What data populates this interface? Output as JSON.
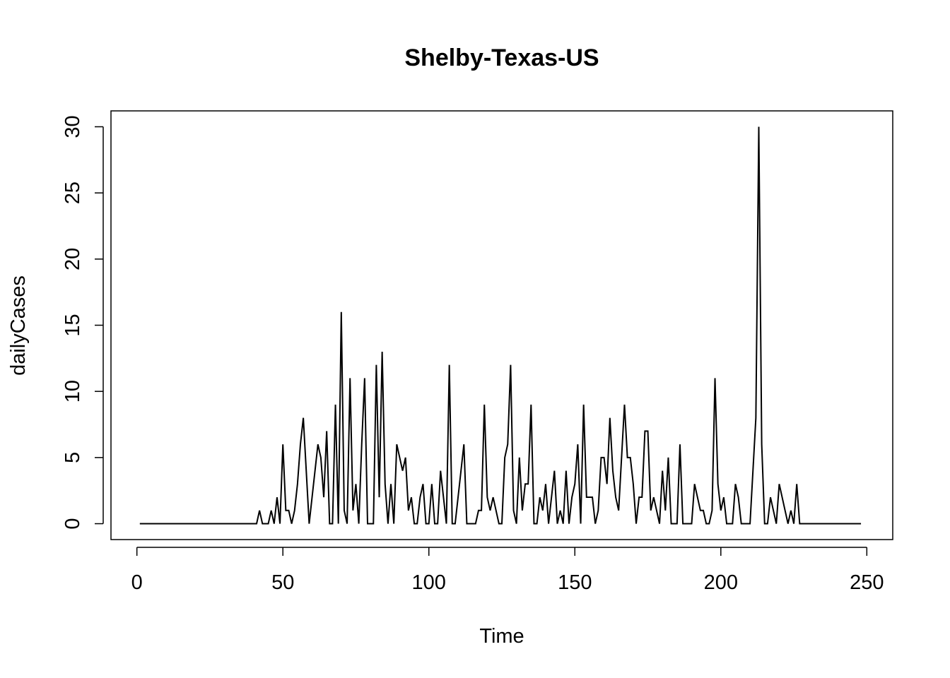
{
  "chart_data": {
    "type": "line",
    "title": "Shelby-Texas-US",
    "xlabel": "Time",
    "ylabel": "dailyCases",
    "xlim": [
      -8.88,
      258.88
    ],
    "ylim": [
      -1.2,
      31.2
    ],
    "x_ticks": [
      0,
      50,
      100,
      150,
      200,
      250
    ],
    "y_ticks": [
      0,
      5,
      10,
      15,
      20,
      25,
      30
    ],
    "grid": false,
    "legend": "none",
    "line_color": "#000000",
    "series": [
      {
        "x_start": 1,
        "values": [
          0,
          0,
          0,
          0,
          0,
          0,
          0,
          0,
          0,
          0,
          0,
          0,
          0,
          0,
          0,
          0,
          0,
          0,
          0,
          0,
          0,
          0,
          0,
          0,
          0,
          0,
          0,
          0,
          0,
          0,
          0,
          0,
          0,
          0,
          0,
          0,
          0,
          0,
          0,
          0,
          0,
          1,
          0,
          0,
          0,
          1,
          0,
          2,
          0,
          6,
          1,
          1,
          0,
          1,
          3,
          6,
          8,
          4,
          0,
          2,
          4,
          6,
          5,
          2,
          7,
          0,
          0,
          9,
          0,
          16,
          1,
          0,
          11,
          1,
          3,
          0,
          6,
          11,
          0,
          0,
          0,
          12,
          2,
          13,
          3,
          0,
          3,
          0,
          6,
          5,
          4,
          5,
          1,
          2,
          0,
          0,
          2,
          3,
          0,
          0,
          3,
          0,
          0,
          4,
          2,
          0,
          12,
          0,
          0,
          2,
          4,
          6,
          0,
          0,
          0,
          0,
          1,
          1,
          9,
          2,
          1,
          2,
          1,
          0,
          0,
          5,
          6,
          12,
          1,
          0,
          5,
          1,
          3,
          3,
          9,
          0,
          0,
          2,
          1,
          3,
          0,
          2,
          4,
          0,
          1,
          0,
          4,
          0,
          2,
          3,
          6,
          0,
          9,
          2,
          2,
          2,
          0,
          1,
          5,
          5,
          3,
          8,
          4,
          2,
          1,
          5,
          9,
          5,
          5,
          3,
          0,
          2,
          2,
          7,
          7,
          1,
          2,
          1,
          0,
          4,
          1,
          5,
          0,
          0,
          0,
          6,
          0,
          0,
          0,
          0,
          3,
          2,
          1,
          1,
          0,
          0,
          1,
          11,
          3,
          1,
          2,
          0,
          0,
          0,
          3,
          2,
          0,
          0,
          0,
          0,
          4,
          8,
          30,
          6,
          0,
          0,
          2,
          1,
          0,
          3,
          2,
          1,
          0,
          1,
          0,
          3,
          0,
          0,
          0,
          0,
          0,
          0,
          0,
          0,
          0,
          0,
          0,
          0,
          0,
          0,
          0,
          0,
          0,
          0,
          0,
          0,
          0,
          0
        ]
      }
    ]
  }
}
